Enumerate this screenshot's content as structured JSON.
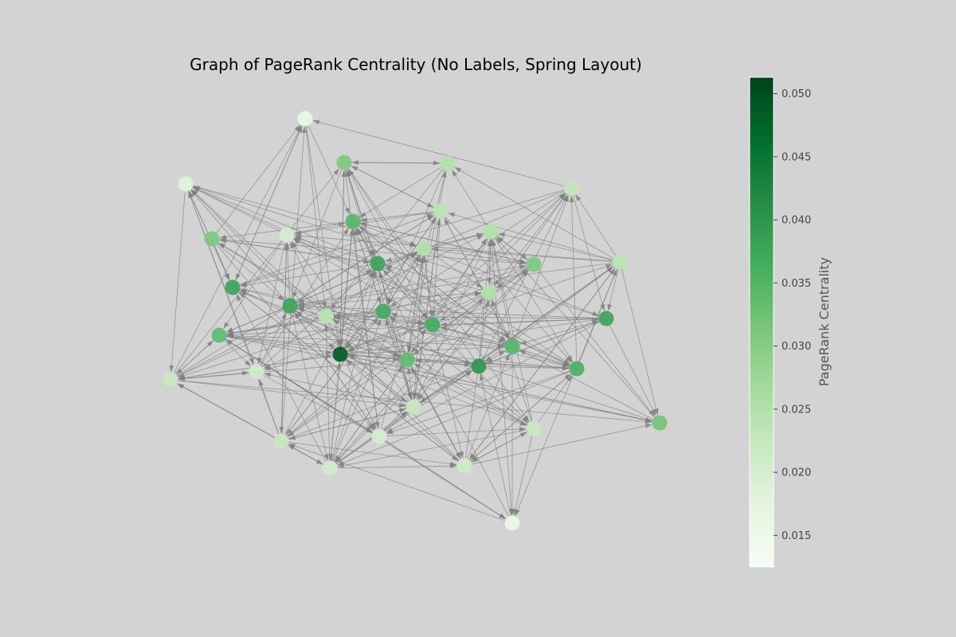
{
  "title": "Graph of PageRank Centrality (No Labels, Spring Layout)",
  "colorbar": {
    "label": "PageRank Centrality",
    "min": 0.0125,
    "max": 0.0513,
    "ticks": [
      "0.015",
      "0.020",
      "0.025",
      "0.030",
      "0.035",
      "0.040",
      "0.045",
      "0.050"
    ],
    "colormap": "Greens",
    "stops": [
      "#f7fcf5",
      "#e5f5e0",
      "#c7e9c0",
      "#a1d99b",
      "#74c476",
      "#41ab5d",
      "#238b45",
      "#006d2c",
      "#00441b"
    ]
  },
  "colors": {
    "background": "#d3d3d3",
    "edge": "#808080",
    "title": "#000000"
  },
  "chart_data": {
    "type": "network",
    "directed": true,
    "layout": "spring",
    "node_count": 36,
    "node_pagerank": [
      0.016,
      0.018,
      0.031,
      0.025,
      0.023,
      0.031,
      0.02,
      0.035,
      0.024,
      0.025,
      0.024,
      0.038,
      0.025,
      0.031,
      0.038,
      0.038,
      0.024,
      0.037,
      0.025,
      0.038,
      0.034,
      0.049,
      0.037,
      0.035,
      0.022,
      0.021,
      0.034,
      0.04,
      0.036,
      0.022,
      0.032,
      0.022,
      0.022,
      0.02,
      0.021,
      0.021
    ]
  }
}
